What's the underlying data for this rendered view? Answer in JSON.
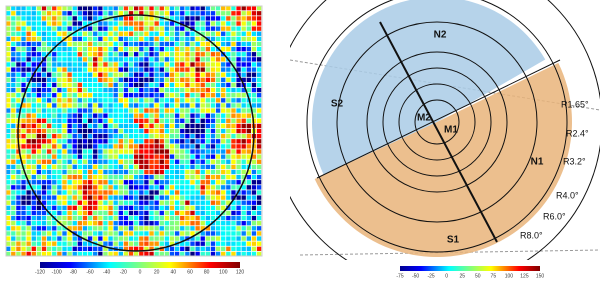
{
  "left_panel": {
    "colorbar_ticks": [
      "-120",
      "-100",
      "-80",
      "-60",
      "-40",
      "-20",
      "0",
      "20",
      "40",
      "60",
      "80",
      "100",
      "120"
    ]
  },
  "right_panel": {
    "regions": [
      {
        "label": "N2"
      },
      {
        "label": "S2"
      },
      {
        "label": "M2"
      },
      {
        "label": "M1"
      },
      {
        "label": "N1"
      },
      {
        "label": "S1"
      }
    ],
    "rings": [
      "R1.65°",
      "R2.4°",
      "R3.2°",
      "R4.0°",
      "R6.0°",
      "R8.0°"
    ],
    "colorbar_ticks": [
      "-75",
      "-50",
      "-25",
      "0",
      "25",
      "50",
      "75",
      "100",
      "125",
      "150"
    ]
  }
}
